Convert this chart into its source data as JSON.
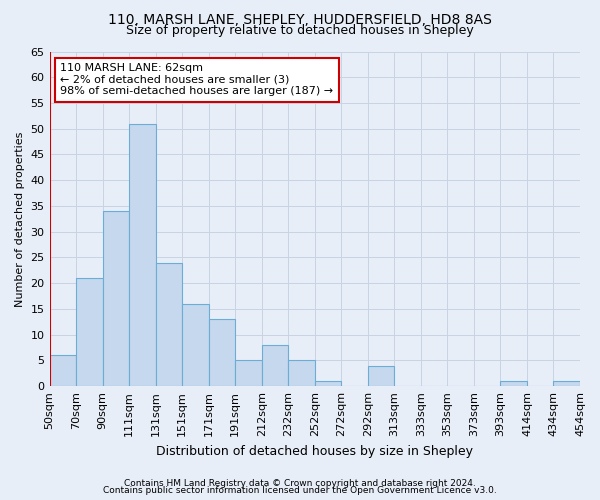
{
  "title1": "110, MARSH LANE, SHEPLEY, HUDDERSFIELD, HD8 8AS",
  "title2": "Size of property relative to detached houses in Shepley",
  "xlabel": "Distribution of detached houses by size in Shepley",
  "ylabel": "Number of detached properties",
  "footer1": "Contains HM Land Registry data © Crown copyright and database right 2024.",
  "footer2": "Contains public sector information licensed under the Open Government Licence v3.0.",
  "annotation_line1": "110 MARSH LANE: 62sqm",
  "annotation_line2": "← 2% of detached houses are smaller (3)",
  "annotation_line3": "98% of semi-detached houses are larger (187) →",
  "bar_values": [
    6,
    21,
    34,
    51,
    24,
    16,
    13,
    5,
    8,
    5,
    1,
    0,
    4,
    0,
    0,
    0,
    0,
    1,
    0,
    1
  ],
  "bin_labels": [
    "50sqm",
    "70sqm",
    "90sqm",
    "111sqm",
    "131sqm",
    "151sqm",
    "171sqm",
    "191sqm",
    "212sqm",
    "232sqm",
    "252sqm",
    "272sqm",
    "292sqm",
    "313sqm",
    "333sqm",
    "353sqm",
    "373sqm",
    "393sqm",
    "414sqm",
    "434sqm",
    "454sqm"
  ],
  "bar_color": "#c5d8ed",
  "bar_edge_color": "#6aaed6",
  "vline_color": "#cc0000",
  "annotation_box_edgecolor": "#cc0000",
  "background_color": "#e8eef8",
  "grid_color": "#c8d4e4",
  "ylim": [
    0,
    65
  ],
  "yticks": [
    0,
    5,
    10,
    15,
    20,
    25,
    30,
    35,
    40,
    45,
    50,
    55,
    60,
    65
  ],
  "title1_fontsize": 10,
  "title2_fontsize": 9,
  "xlabel_fontsize": 9,
  "ylabel_fontsize": 8,
  "tick_fontsize": 8,
  "footer_fontsize": 6.5,
  "annotation_fontsize": 8
}
